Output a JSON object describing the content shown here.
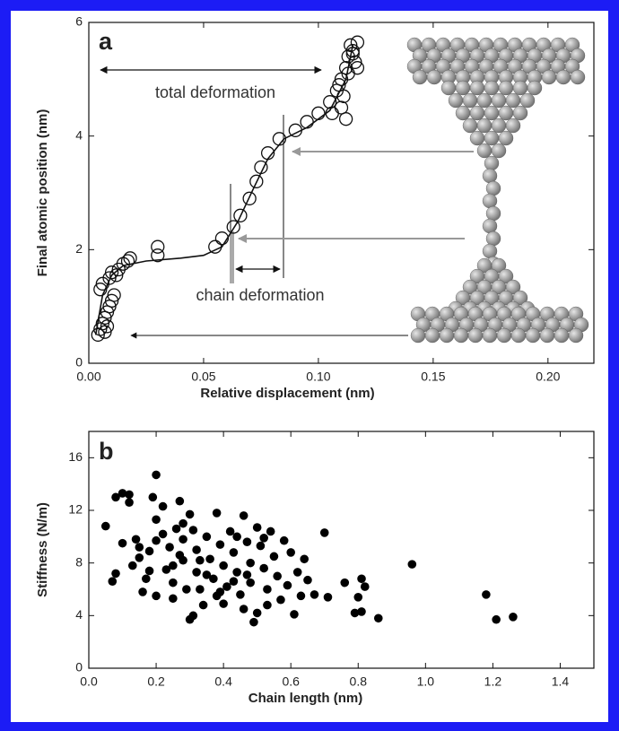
{
  "chart_data": [
    {
      "type": "scatter",
      "panel": "a",
      "annotations": [
        "total deformation",
        "chain deformation"
      ],
      "x_label": "Relative displacement (nm)",
      "y_label": "Final atomic position (nm)",
      "xlim": [
        0,
        0.22
      ],
      "ylim": [
        0,
        6
      ],
      "xticks": [
        {
          "value": 0,
          "label": "0.00"
        },
        0.05,
        {
          "value": 0.1,
          "label": "0.10"
        },
        0.15,
        {
          "value": 0.2,
          "label": "0.20"
        }
      ],
      "yticks": [
        0,
        2,
        4,
        6
      ],
      "series": [
        {
          "type": "scatter",
          "marker": "open",
          "color": "#111111",
          "x": [
            0.004,
            0.005,
            0.006,
            0.007,
            0.008,
            0.009,
            0.01,
            0.011,
            0.005,
            0.006,
            0.007,
            0.008,
            0.009,
            0.01,
            0.012,
            0.013,
            0.015,
            0.017,
            0.018,
            0.03,
            0.03,
            0.055,
            0.058,
            0.063,
            0.066,
            0.07,
            0.073,
            0.075,
            0.078,
            0.083,
            0.09,
            0.095,
            0.1,
            0.105,
            0.108,
            0.11,
            0.112,
            0.113,
            0.114,
            0.115,
            0.116,
            0.117,
            0.112,
            0.11,
            0.106,
            0.109,
            0.113,
            0.115,
            0.117,
            0.111
          ],
          "values": [
            0.5,
            0.6,
            0.7,
            0.8,
            0.9,
            1.0,
            1.1,
            1.2,
            1.3,
            1.4,
            0.55,
            0.65,
            1.5,
            1.6,
            1.55,
            1.65,
            1.75,
            1.8,
            1.85,
            1.9,
            2.05,
            2.05,
            2.2,
            2.4,
            2.6,
            2.9,
            3.2,
            3.45,
            3.7,
            3.95,
            4.1,
            4.25,
            4.4,
            4.6,
            4.8,
            5.0,
            5.2,
            5.4,
            5.6,
            5.5,
            5.3,
            5.65,
            4.3,
            4.5,
            4.4,
            4.9,
            5.1,
            5.45,
            5.2,
            4.7
          ]
        },
        {
          "type": "line",
          "color": "#111111",
          "x": [
            0.003,
            0.006,
            0.01,
            0.015,
            0.025,
            0.04,
            0.05,
            0.058,
            0.065,
            0.072,
            0.078,
            0.085,
            0.095,
            0.105,
            0.112,
            0.115
          ],
          "values": [
            0.5,
            1.2,
            1.55,
            1.72,
            1.8,
            1.85,
            1.9,
            2.05,
            2.5,
            3.1,
            3.6,
            3.95,
            4.15,
            4.45,
            5.0,
            5.6
          ]
        }
      ]
    },
    {
      "type": "scatter",
      "panel": "b",
      "x_label": "Chain length (nm)",
      "y_label": "Stiffness (N/m)",
      "xlim": [
        0,
        1.5
      ],
      "ylim": [
        0,
        18
      ],
      "xticks": [
        {
          "value": 0,
          "label": "0.0"
        },
        0.2,
        0.4,
        0.6,
        0.8,
        {
          "value": 1,
          "label": "1.0"
        },
        1.2,
        1.4
      ],
      "yticks": [
        0,
        4,
        8,
        12,
        16
      ],
      "series": [
        {
          "type": "scatter",
          "marker": "filled",
          "color": "#000000",
          "x": [
            0.05,
            0.08,
            0.1,
            0.12,
            0.08,
            0.07,
            0.1,
            0.12,
            0.14,
            0.15,
            0.13,
            0.17,
            0.2,
            0.19,
            0.22,
            0.2,
            0.2,
            0.18,
            0.18,
            0.2,
            0.22,
            0.24,
            0.25,
            0.25,
            0.25,
            0.27,
            0.28,
            0.28,
            0.28,
            0.29,
            0.3,
            0.31,
            0.3,
            0.31,
            0.32,
            0.32,
            0.33,
            0.34,
            0.35,
            0.36,
            0.37,
            0.38,
            0.38,
            0.39,
            0.4,
            0.4,
            0.41,
            0.42,
            0.43,
            0.44,
            0.45,
            0.46,
            0.46,
            0.47,
            0.48,
            0.48,
            0.49,
            0.5,
            0.5,
            0.51,
            0.52,
            0.53,
            0.53,
            0.54,
            0.55,
            0.56,
            0.57,
            0.58,
            0.59,
            0.6,
            0.61,
            0.62,
            0.63,
            0.64,
            0.65,
            0.67,
            0.7,
            0.71,
            0.76,
            0.79,
            0.8,
            0.81,
            0.82,
            0.81,
            0.86,
            0.96,
            1.18,
            1.21,
            1.26,
            0.15,
            0.27,
            0.35,
            0.43,
            0.52,
            0.44,
            0.33,
            0.23,
            0.16,
            0.26,
            0.39,
            0.47
          ],
          "values": [
            10.8,
            13,
            13.3,
            13.2,
            7.2,
            6.6,
            9.5,
            12.6,
            9.8,
            8.4,
            7.8,
            6.8,
            14.7,
            13,
            12.3,
            11.3,
            9.7,
            8.9,
            7.4,
            5.5,
            10.2,
            9.2,
            7.8,
            6.5,
            5.3,
            12.7,
            11,
            9.8,
            8.2,
            6,
            3.7,
            4,
            11.7,
            10.5,
            9,
            7.3,
            6,
            4.8,
            10,
            8.3,
            6.8,
            5.5,
            11.8,
            9.4,
            7.8,
            4.9,
            6.2,
            10.4,
            8.8,
            7.3,
            5.6,
            11.6,
            4.5,
            9.6,
            8,
            6.5,
            3.5,
            4.2,
            10.7,
            9.3,
            7.6,
            6,
            4.8,
            10.4,
            8.5,
            7,
            5.2,
            9.7,
            6.3,
            8.8,
            4.1,
            7.3,
            5.5,
            8.3,
            6.7,
            5.6,
            10.3,
            5.4,
            6.5,
            4.2,
            5.4,
            6.8,
            6.2,
            4.3,
            3.8,
            7.9,
            5.6,
            3.7,
            3.9,
            9.2,
            8.6,
            7.1,
            6.6,
            9.9,
            10,
            8.2,
            7.5,
            5.8,
            10.6,
            5.8,
            7.1
          ]
        }
      ]
    }
  ]
}
